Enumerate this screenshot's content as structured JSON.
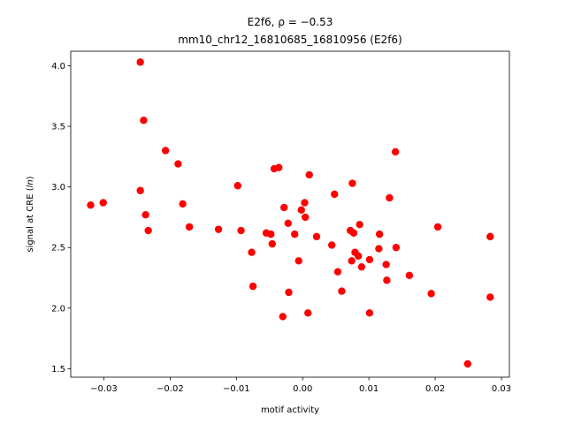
{
  "chart_data": {
    "type": "scatter",
    "title_line1": "E2f6, ρ = −0.53",
    "title_line2": "mm10_chr12_16810685_16810956 (E2f6)",
    "xlabel": "motif activity",
    "ylabel_prefix": "signal at CRE (",
    "ylabel_var": "ln",
    "ylabel_suffix": ")",
    "xlim": [
      -0.035,
      0.0312
    ],
    "ylim": [
      1.43,
      4.12
    ],
    "xticks": [
      -0.03,
      -0.02,
      -0.01,
      0.0,
      0.01,
      0.02,
      0.03
    ],
    "xtick_labels": [
      "−0.03",
      "−0.02",
      "−0.01",
      "0.00",
      "0.01",
      "0.02",
      "0.03"
    ],
    "yticks": [
      1.5,
      2.0,
      2.5,
      3.0,
      3.5,
      4.0
    ],
    "ytick_labels": [
      "1.5",
      "2.0",
      "2.5",
      "3.0",
      "3.5",
      "4.0"
    ],
    "marker_color": "#ff0000",
    "points": [
      {
        "x": -0.032,
        "y": 2.85
      },
      {
        "x": -0.0301,
        "y": 2.87
      },
      {
        "x": -0.0245,
        "y": 4.03
      },
      {
        "x": -0.0245,
        "y": 2.97
      },
      {
        "x": -0.024,
        "y": 3.55
      },
      {
        "x": -0.0237,
        "y": 2.77
      },
      {
        "x": -0.0233,
        "y": 2.64
      },
      {
        "x": -0.0207,
        "y": 3.3
      },
      {
        "x": -0.0188,
        "y": 3.19
      },
      {
        "x": -0.0181,
        "y": 2.86
      },
      {
        "x": -0.0171,
        "y": 2.67
      },
      {
        "x": -0.0127,
        "y": 2.65
      },
      {
        "x": -0.0098,
        "y": 3.01
      },
      {
        "x": -0.0093,
        "y": 2.64
      },
      {
        "x": -0.0077,
        "y": 2.46
      },
      {
        "x": -0.0075,
        "y": 2.18
      },
      {
        "x": -0.0055,
        "y": 2.62
      },
      {
        "x": -0.0048,
        "y": 2.61
      },
      {
        "x": -0.0046,
        "y": 2.53
      },
      {
        "x": -0.0043,
        "y": 3.15
      },
      {
        "x": -0.0036,
        "y": 3.16
      },
      {
        "x": -0.003,
        "y": 1.93
      },
      {
        "x": -0.0028,
        "y": 2.83
      },
      {
        "x": -0.0022,
        "y": 2.7
      },
      {
        "x": -0.0021,
        "y": 2.13
      },
      {
        "x": -0.0012,
        "y": 2.61
      },
      {
        "x": -0.0006,
        "y": 2.39
      },
      {
        "x": -0.0002,
        "y": 2.81
      },
      {
        "x": 0.0003,
        "y": 2.87
      },
      {
        "x": 0.0004,
        "y": 2.75
      },
      {
        "x": 0.0008,
        "y": 1.96
      },
      {
        "x": 0.001,
        "y": 3.1
      },
      {
        "x": 0.0021,
        "y": 2.59
      },
      {
        "x": 0.0044,
        "y": 2.52
      },
      {
        "x": 0.0048,
        "y": 2.94
      },
      {
        "x": 0.0053,
        "y": 2.3
      },
      {
        "x": 0.0059,
        "y": 2.14
      },
      {
        "x": 0.0072,
        "y": 2.64
      },
      {
        "x": 0.0074,
        "y": 2.39
      },
      {
        "x": 0.0075,
        "y": 3.03
      },
      {
        "x": 0.0077,
        "y": 2.62
      },
      {
        "x": 0.0079,
        "y": 2.46
      },
      {
        "x": 0.0084,
        "y": 2.43
      },
      {
        "x": 0.0086,
        "y": 2.69
      },
      {
        "x": 0.0089,
        "y": 2.34
      },
      {
        "x": 0.0101,
        "y": 1.96
      },
      {
        "x": 0.0101,
        "y": 2.4
      },
      {
        "x": 0.0115,
        "y": 2.49
      },
      {
        "x": 0.0116,
        "y": 2.61
      },
      {
        "x": 0.0126,
        "y": 2.36
      },
      {
        "x": 0.0127,
        "y": 2.23
      },
      {
        "x": 0.0131,
        "y": 2.91
      },
      {
        "x": 0.014,
        "y": 3.29
      },
      {
        "x": 0.0141,
        "y": 2.5
      },
      {
        "x": 0.0161,
        "y": 2.27
      },
      {
        "x": 0.0194,
        "y": 2.12
      },
      {
        "x": 0.0204,
        "y": 2.67
      },
      {
        "x": 0.0249,
        "y": 1.54
      },
      {
        "x": 0.0283,
        "y": 2.59
      },
      {
        "x": 0.0283,
        "y": 2.09
      }
    ]
  }
}
